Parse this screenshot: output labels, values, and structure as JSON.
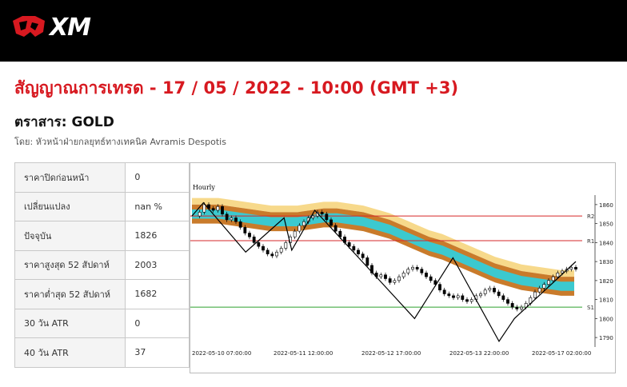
{
  "brand": {
    "name": "XM"
  },
  "header": {
    "title": "สัญญาณการเทรด - 17 / 05 / 2022 - 10:00 (GMT +3)",
    "instrument": "ตราสาร: GOLD",
    "author": "โดย: หัวหน้าฝ่ายกลยุทธ์ทางเทคนิค Avramis Despotis"
  },
  "stats": [
    {
      "label": "ราคาปิดก่อนหน้า",
      "value": "0"
    },
    {
      "label": "เปลี่ยนแปลง",
      "value": "nan %"
    },
    {
      "label": "ปัจจุบัน",
      "value": "1826"
    },
    {
      "label": "ราคาสูงสุด 52 สัปดาห์",
      "value": "2003"
    },
    {
      "label": "ราคาต่ำสุด 52 สัปดาห์",
      "value": "1682"
    },
    {
      "label": "30 วัน ATR",
      "value": "0"
    },
    {
      "label": "40 วัน ATR",
      "value": "37"
    }
  ],
  "chart_data": {
    "type": "line",
    "title": "Hourly",
    "ylim": [
      1785,
      1865
    ],
    "yticks": [
      1790,
      1800,
      1810,
      1820,
      1830,
      1840,
      1850,
      1860
    ],
    "xticks": [
      "2022-05-10 07:00:00",
      "2022-05-11 12:00:00",
      "2022-05-12 17:00:00",
      "2022-05-13 22:00:00",
      "2022-05-17 02:00:00"
    ],
    "levels": [
      {
        "name": "R2",
        "value": 1854,
        "color": "#d62728"
      },
      {
        "name": "R1",
        "value": 1841,
        "color": "#d62728"
      },
      {
        "name": "S1",
        "value": 1806,
        "color": "#2ca02c"
      }
    ],
    "price": [
      1854,
      1856,
      1860,
      1858,
      1857,
      1859,
      1855,
      1852,
      1853,
      1851,
      1848,
      1845,
      1843,
      1840,
      1838,
      1836,
      1834,
      1833,
      1835,
      1837,
      1840,
      1843,
      1846,
      1849,
      1851,
      1853,
      1854,
      1856,
      1855,
      1852,
      1849,
      1846,
      1843,
      1840,
      1838,
      1836,
      1834,
      1832,
      1828,
      1824,
      1822,
      1823,
      1821,
      1819,
      1820,
      1822,
      1824,
      1826,
      1827,
      1826,
      1824,
      1822,
      1820,
      1818,
      1815,
      1813,
      1812,
      1811,
      1812,
      1810,
      1809,
      1810,
      1812,
      1813,
      1815,
      1816,
      1814,
      1812,
      1810,
      1808,
      1806,
      1805,
      1806,
      1808,
      1811,
      1814,
      1816,
      1818,
      1820,
      1822,
      1824,
      1825,
      1826,
      1827,
      1826
    ],
    "zigzag": [
      [
        0,
        1854
      ],
      [
        3,
        1861
      ],
      [
        14,
        1835
      ],
      [
        24,
        1853
      ],
      [
        26,
        1836
      ],
      [
        32,
        1857
      ],
      [
        48,
        1822
      ],
      [
        58,
        1800
      ],
      [
        68,
        1832
      ],
      [
        80,
        1788
      ],
      [
        84,
        1800
      ],
      [
        100,
        1830
      ]
    ],
    "bands": {
      "inner_color": "#3cc9cf",
      "middle_color": "#c97b2b",
      "outer_color": "#f7d98b",
      "center": [
        1855,
        1855,
        1855,
        1854,
        1853,
        1852,
        1851,
        1851,
        1851,
        1852,
        1853,
        1853,
        1852,
        1851,
        1849,
        1847,
        1844,
        1841,
        1838,
        1836,
        1833,
        1830,
        1827,
        1824,
        1822,
        1820,
        1819,
        1818,
        1817,
        1817
      ],
      "inner_half": 2.4,
      "middle_half": 5.0,
      "outer_top_offset": 8.5
    }
  }
}
